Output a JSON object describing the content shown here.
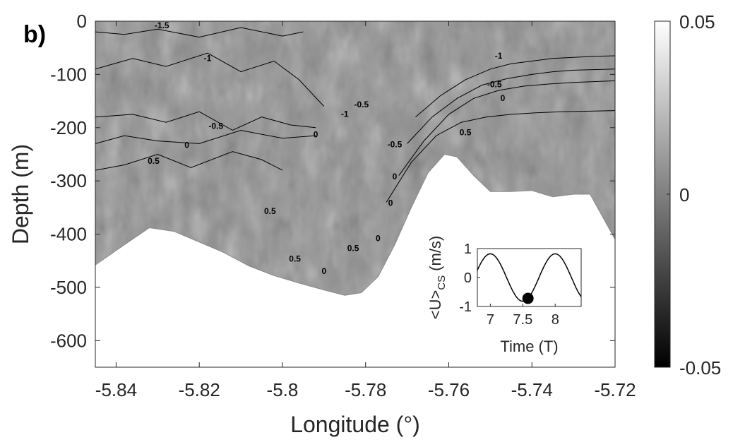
{
  "panel_label": "b)",
  "chart_data": [
    {
      "type": "heatmap",
      "title": "",
      "xlabel": "Longitude (°)",
      "ylabel": "Depth (m)",
      "xlim": [
        -5.845,
        -5.72
      ],
      "ylim": [
        -650,
        0
      ],
      "x_ticks": [
        -5.84,
        -5.82,
        -5.8,
        -5.78,
        -5.76,
        -5.74,
        -5.72
      ],
      "x_tick_labels": [
        "-5.84",
        "-5.82",
        "-5.8",
        "-5.78",
        "-5.76",
        "-5.74",
        "-5.72"
      ],
      "y_ticks": [
        0,
        -100,
        -200,
        -300,
        -400,
        -500,
        -600
      ],
      "y_tick_labels": [
        "0",
        "-100",
        "-200",
        "-300",
        "-400",
        "-500",
        "-600"
      ],
      "colormap": "gray",
      "colorbar": {
        "min": -0.05,
        "max": 0.05,
        "ticks": [
          -0.05,
          0,
          0.05
        ],
        "tick_labels": [
          "-0.05",
          "0",
          "0.05"
        ]
      },
      "bathymetry": {
        "x": [
          -5.845,
          -5.838,
          -5.832,
          -5.826,
          -5.82,
          -5.814,
          -5.808,
          -5.802,
          -5.796,
          -5.79,
          -5.785,
          -5.781,
          -5.777,
          -5.773,
          -5.769,
          -5.765,
          -5.761,
          -5.758,
          -5.754,
          -5.75,
          -5.745,
          -5.74,
          -5.735,
          -5.73,
          -5.726,
          -5.72
        ],
        "y": [
          -458,
          -420,
          -388,
          -395,
          -415,
          -435,
          -460,
          -478,
          -492,
          -505,
          -515,
          -510,
          -480,
          -420,
          -350,
          -285,
          -250,
          -255,
          -290,
          -320,
          -320,
          -318,
          -330,
          -325,
          -325,
          -410
        ]
      },
      "contours": [
        {
          "level": "-1.5",
          "x": [
            -5.845,
            -5.838,
            -5.83,
            -5.82,
            -5.81,
            -5.8,
            -5.795
          ],
          "y": [
            -20,
            -25,
            -15,
            -30,
            -12,
            -28,
            -20
          ]
        },
        {
          "level": "-1",
          "x": [
            -5.845,
            -5.836,
            -5.828,
            -5.818,
            -5.81,
            -5.802,
            -5.796,
            -5.79
          ],
          "y": [
            -90,
            -70,
            -85,
            -60,
            -95,
            -75,
            -110,
            -160
          ]
        },
        {
          "level": "-0.5",
          "x": [
            -5.845,
            -5.836,
            -5.828,
            -5.82,
            -5.812,
            -5.805,
            -5.798,
            -5.792
          ],
          "y": [
            -180,
            -175,
            -190,
            -170,
            -205,
            -180,
            -195,
            -200
          ]
        },
        {
          "level": "0",
          "x": [
            -5.845,
            -5.838,
            -5.83,
            -5.82,
            -5.81,
            -5.8,
            -5.792
          ],
          "y": [
            -230,
            -215,
            -225,
            -230,
            -205,
            -220,
            -215
          ]
        },
        {
          "level": "0.5",
          "x": [
            -5.845,
            -5.838,
            -5.83,
            -5.822,
            -5.812,
            -5.805,
            -5.8
          ],
          "y": [
            -280,
            -270,
            -250,
            -275,
            -245,
            -260,
            -280
          ]
        },
        {
          "level": "-1",
          "x": [
            -5.768,
            -5.762,
            -5.756,
            -5.75,
            -5.745,
            -5.74,
            -5.735,
            -5.73,
            -5.725,
            -5.72
          ],
          "y": [
            -180,
            -140,
            -110,
            -90,
            -80,
            -75,
            -70,
            -68,
            -66,
            -65
          ]
        },
        {
          "level": "-0.5",
          "x": [
            -5.77,
            -5.764,
            -5.758,
            -5.752,
            -5.746,
            -5.74,
            -5.735,
            -5.73,
            -5.72
          ],
          "y": [
            -230,
            -180,
            -145,
            -120,
            -108,
            -100,
            -95,
            -92,
            -90
          ]
        },
        {
          "level": "0",
          "x": [
            -5.772,
            -5.766,
            -5.76,
            -5.754,
            -5.748,
            -5.742,
            -5.736,
            -5.73,
            -5.72
          ],
          "y": [
            -290,
            -225,
            -175,
            -145,
            -130,
            -122,
            -118,
            -115,
            -112
          ]
        },
        {
          "level": "0.5",
          "x": [
            -5.775,
            -5.769,
            -5.763,
            -5.757,
            -5.751,
            -5.745,
            -5.739,
            -5.733,
            -5.72
          ],
          "y": [
            -340,
            -265,
            -215,
            -190,
            -180,
            -175,
            -172,
            -170,
            -168
          ]
        }
      ],
      "contour_labels": [
        {
          "text": "-1.5",
          "x": -5.829,
          "y": -13
        },
        {
          "text": "-1",
          "x": -5.818,
          "y": -75
        },
        {
          "text": "-0.5",
          "x": -5.816,
          "y": -202
        },
        {
          "text": "0",
          "x": -5.823,
          "y": -238
        },
        {
          "text": "0.5",
          "x": -5.831,
          "y": -268
        },
        {
          "text": "0.5",
          "x": -5.803,
          "y": -362
        },
        {
          "text": "0.5",
          "x": -5.797,
          "y": -452
        },
        {
          "text": "0",
          "x": -5.79,
          "y": -475
        },
        {
          "text": "0.5",
          "x": -5.783,
          "y": -432
        },
        {
          "text": "0",
          "x": -5.777,
          "y": -413
        },
        {
          "text": "0",
          "x": -5.774,
          "y": -347
        },
        {
          "text": "-1",
          "x": -5.785,
          "y": -180
        },
        {
          "text": "-0.5",
          "x": -5.781,
          "y": -162
        },
        {
          "text": "0",
          "x": -5.792,
          "y": -218
        },
        {
          "text": "-0.5",
          "x": -5.773,
          "y": -237
        },
        {
          "text": "0",
          "x": -5.773,
          "y": -297
        },
        {
          "text": "-1",
          "x": -5.748,
          "y": -70
        },
        {
          "text": "-0.5",
          "x": -5.749,
          "y": -124
        },
        {
          "text": "0",
          "x": -5.747,
          "y": -150
        },
        {
          "text": "0.5",
          "x": -5.756,
          "y": -214
        }
      ]
    },
    {
      "type": "line",
      "title": "",
      "xlabel": "Time (T)",
      "ylabel": "<U>",
      "ylabel_subscript": "CS",
      "ylabel_unit": "(m/s)",
      "xlim": [
        6.8,
        8.4
      ],
      "ylim": [
        -1,
        1
      ],
      "x_ticks": [
        7,
        7.5,
        8
      ],
      "x_tick_labels": [
        "7",
        "7.5",
        "8"
      ],
      "y_ticks": [
        1,
        0,
        -1
      ],
      "y_tick_labels": [
        "1",
        "0",
        "-1"
      ],
      "series": [
        {
          "function": "sine",
          "amplitude": 0.82,
          "period": 1,
          "peak_at": 7.0
        }
      ],
      "marker": {
        "x": 7.58,
        "y": -0.72
      }
    }
  ]
}
